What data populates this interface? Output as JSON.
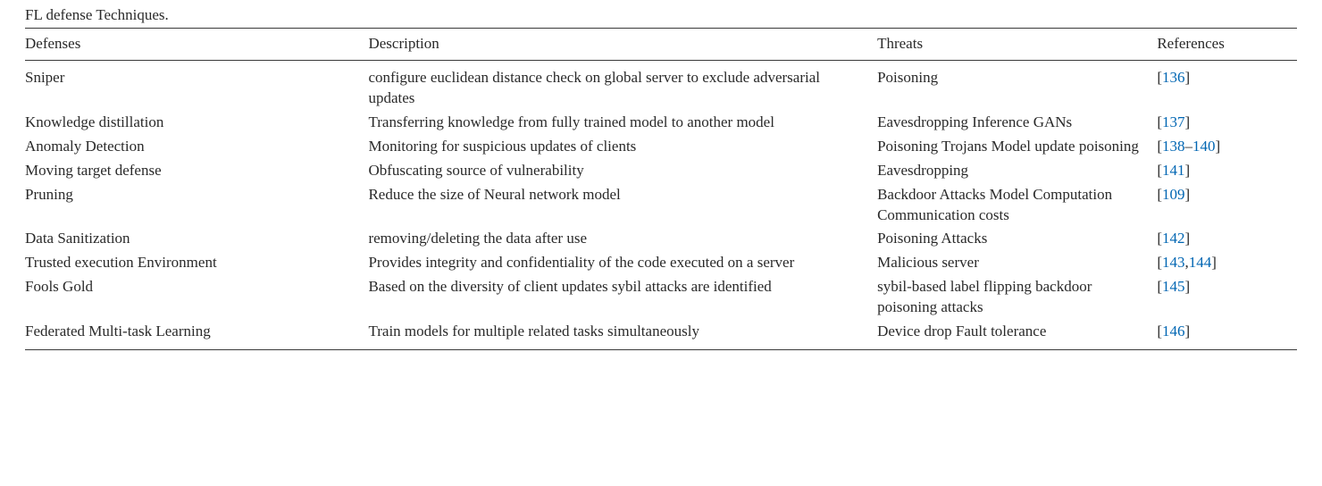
{
  "caption": "FL defense Techniques.",
  "columns": {
    "defenses": "Defenses",
    "description": "Description",
    "threats": "Threats",
    "references": "References"
  },
  "link_color": "#0066b3",
  "text_color": "#2a2a2a",
  "rule_color": "#3a3a3a",
  "rows": [
    {
      "defense": "Sniper",
      "description": "configure euclidean distance check on global server to exclude adversarial updates",
      "threats": "Poisoning",
      "refs": [
        {
          "type": "single",
          "n": "136"
        }
      ]
    },
    {
      "defense": "Knowledge distillation",
      "description": "Transferring knowledge from fully trained model to another model",
      "threats": "Eavesdropping Inference GANs",
      "refs": [
        {
          "type": "single",
          "n": "137"
        }
      ]
    },
    {
      "defense": "Anomaly Detection",
      "description": "Monitoring for suspicious updates of clients",
      "threats": "Poisoning Trojans Model update poisoning",
      "refs": [
        {
          "type": "range",
          "a": "138",
          "b": "140"
        }
      ]
    },
    {
      "defense": "Moving target defense",
      "description": "Obfuscating source of vulnerability",
      "threats": "Eavesdropping",
      "refs": [
        {
          "type": "single",
          "n": "141"
        }
      ]
    },
    {
      "defense": "Pruning",
      "description": "Reduce the size of Neural network model",
      "threats": "Backdoor Attacks Model Computation Communication costs",
      "refs": [
        {
          "type": "single",
          "n": "109"
        }
      ]
    },
    {
      "defense": "Data Sanitization",
      "description": "removing/deleting the data after use",
      "threats": "Poisoning Attacks",
      "refs": [
        {
          "type": "single",
          "n": "142"
        }
      ]
    },
    {
      "defense": "Trusted execution Environment",
      "description": "Provides integrity and confidentiality of the code executed on a server",
      "threats": "Malicious server",
      "refs": [
        {
          "type": "single",
          "n": "143"
        },
        {
          "type": "single",
          "n": "144"
        }
      ]
    },
    {
      "defense": "Fools Gold",
      "description": "Based on the diversity of client updates sybil attacks are identified",
      "threats": "sybil-based label flipping backdoor poisoning attacks",
      "refs": [
        {
          "type": "single",
          "n": "145"
        }
      ]
    },
    {
      "defense": "Federated Multi-task Learning",
      "description": "Train models for multiple related tasks simultaneously",
      "threats": "Device drop Fault tolerance",
      "refs": [
        {
          "type": "single",
          "n": "146"
        }
      ]
    }
  ]
}
